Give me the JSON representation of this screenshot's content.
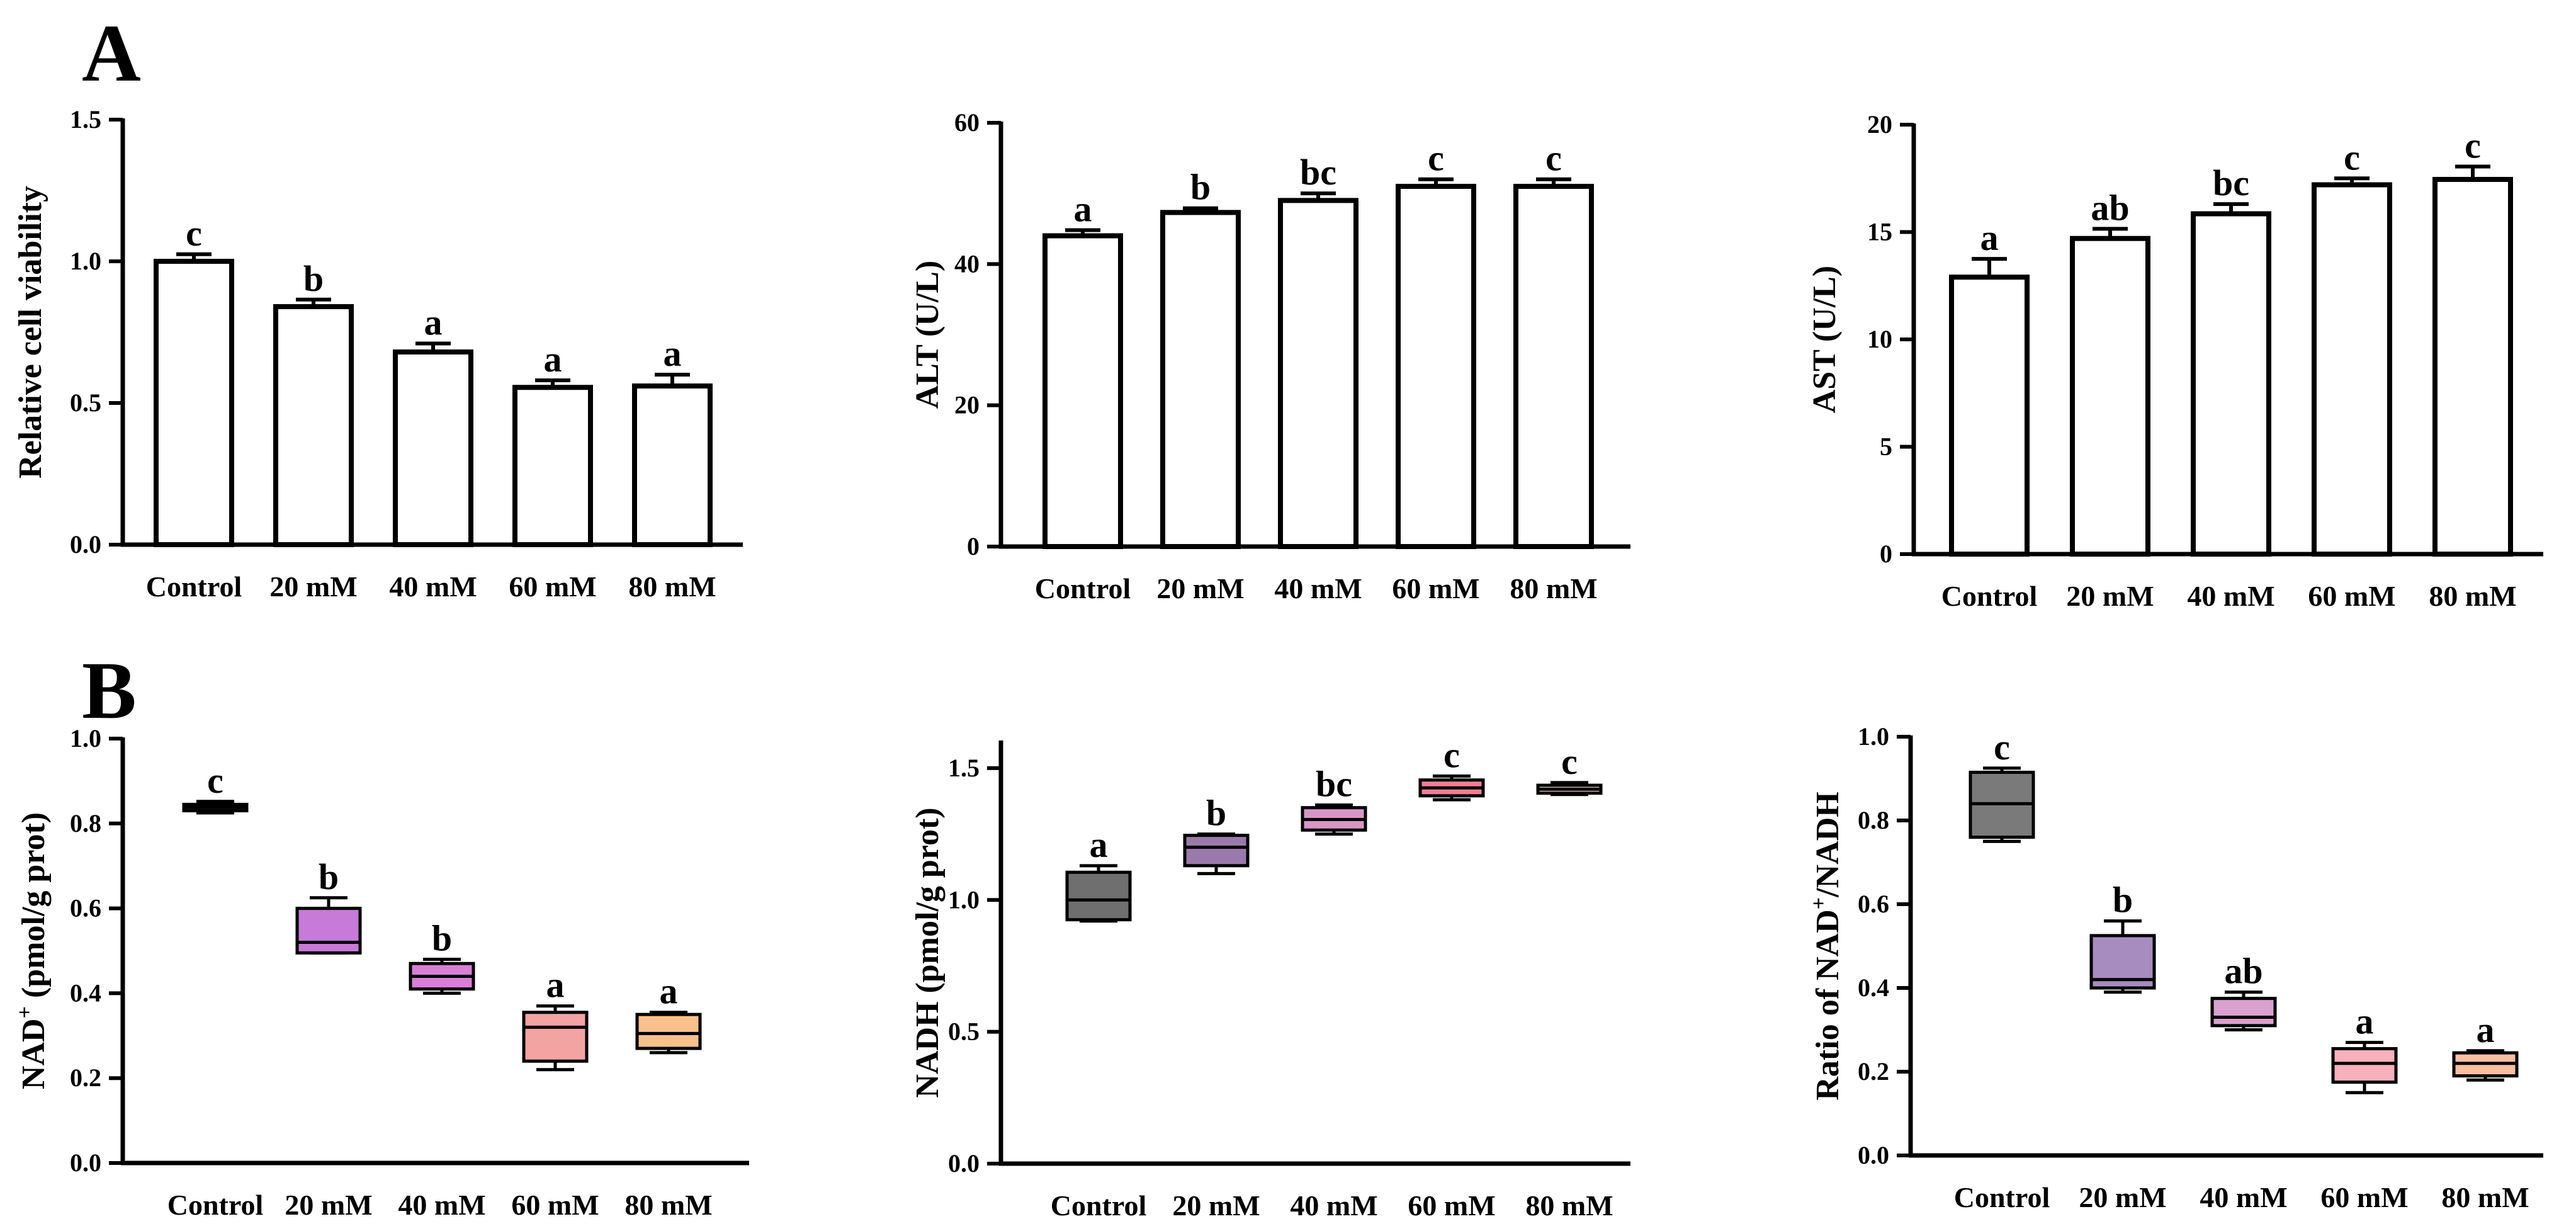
{
  "panel_labels": [
    "A",
    "B"
  ],
  "chart_data": [
    {
      "type": "bar",
      "panel": "A",
      "categories": [
        "Control",
        "20 mM",
        "40 mM",
        "60 mM",
        "80 mM"
      ],
      "values": [
        1.0,
        0.84,
        0.68,
        0.555,
        0.56
      ],
      "errors": [
        0.025,
        0.025,
        0.03,
        0.025,
        0.04
      ],
      "sig_letters": [
        "c",
        "b",
        "a",
        "a",
        "a"
      ],
      "ylabel": "Relative cell  viability",
      "ylim": [
        0,
        1.5
      ],
      "yticks": [
        0.0,
        0.5,
        1.0,
        1.5
      ],
      "ytick_labels": [
        "0.0",
        "0.5",
        "1.0",
        "1.5"
      ]
    },
    {
      "type": "bar",
      "panel": "A",
      "categories": [
        "Control",
        "20 mM",
        "40 mM",
        "60 mM",
        "80 mM"
      ],
      "values": [
        44,
        47.3,
        49,
        51,
        51
      ],
      "errors": [
        0.8,
        0.6,
        1.0,
        1.0,
        1.0
      ],
      "sig_letters": [
        "a",
        "b",
        "bc",
        "c",
        "c"
      ],
      "ylabel": "ALT (U/L)",
      "ylim": [
        0,
        60
      ],
      "yticks": [
        0,
        20,
        40,
        60
      ],
      "ytick_labels": [
        "0",
        "20",
        "40",
        "60"
      ]
    },
    {
      "type": "bar",
      "panel": "A",
      "categories": [
        "Control",
        "20 mM",
        "40 mM",
        "60 mM",
        "80 mM"
      ],
      "values": [
        12.9,
        14.7,
        15.85,
        17.2,
        17.45
      ],
      "errors": [
        0.85,
        0.45,
        0.45,
        0.3,
        0.6
      ],
      "sig_letters": [
        "a",
        "ab",
        "bc",
        "c",
        "c"
      ],
      "ylabel": "AST (U/L)",
      "ylim": [
        0,
        20
      ],
      "yticks": [
        0,
        5,
        10,
        15,
        20
      ],
      "ytick_labels": [
        "0",
        "5",
        "10",
        "15",
        "20"
      ]
    },
    {
      "type": "box",
      "panel": "B",
      "categories": [
        "Control",
        "20 mM",
        "40 mM",
        "60 mM",
        "80 mM"
      ],
      "boxes": [
        {
          "min": 0.825,
          "q1": 0.83,
          "median": 0.838,
          "q3": 0.845,
          "max": 0.852
        },
        {
          "min": 0.495,
          "q1": 0.495,
          "median": 0.52,
          "q3": 0.6,
          "max": 0.625
        },
        {
          "min": 0.4,
          "q1": 0.41,
          "median": 0.44,
          "q3": 0.47,
          "max": 0.48
        },
        {
          "min": 0.22,
          "q1": 0.24,
          "median": 0.32,
          "q3": 0.355,
          "max": 0.37
        },
        {
          "min": 0.26,
          "q1": 0.27,
          "median": 0.305,
          "q3": 0.35,
          "max": 0.355
        }
      ],
      "fills": [
        "#3a3a3a",
        "#c77ad8",
        "#d87fd8",
        "#f4a3a3",
        "#f8c08a"
      ],
      "sig_letters": [
        "c",
        "b",
        "b",
        "a",
        "a"
      ],
      "ylabel_main": "NAD",
      "ylabel_sup": "+",
      "ylabel_rest": " (pmol/g prot)",
      "ylim": [
        0,
        1.0
      ],
      "yticks": [
        0.0,
        0.2,
        0.4,
        0.6,
        0.8,
        1.0
      ],
      "ytick_labels": [
        "0.0",
        "0.2",
        "0.4",
        "0.6",
        "0.8",
        "1.0"
      ]
    },
    {
      "type": "box",
      "panel": "B",
      "categories": [
        "Control",
        "20 mM",
        "40 mM",
        "60 mM",
        "80 mM"
      ],
      "boxes": [
        {
          "min": 0.92,
          "q1": 0.925,
          "median": 1.0,
          "q3": 1.105,
          "max": 1.13
        },
        {
          "min": 1.1,
          "q1": 1.13,
          "median": 1.2,
          "q3": 1.245,
          "max": 1.25
        },
        {
          "min": 1.25,
          "q1": 1.265,
          "median": 1.305,
          "q3": 1.35,
          "max": 1.36
        },
        {
          "min": 1.38,
          "q1": 1.395,
          "median": 1.425,
          "q3": 1.455,
          "max": 1.47
        },
        {
          "min": 1.4,
          "q1": 1.405,
          "median": 1.42,
          "q3": 1.435,
          "max": 1.445
        }
      ],
      "fills": [
        "#6f6f6f",
        "#9a7aaa",
        "#d896c8",
        "#f07f93",
        "#e8c8c8"
      ],
      "sig_letters": [
        "a",
        "b",
        "bc",
        "c",
        "c"
      ],
      "ylabel_main": "NADH (pmol/g prot)",
      "ylabel_sup": "",
      "ylabel_rest": "",
      "ylim": [
        0,
        1.6
      ],
      "yticks": [
        0.0,
        0.5,
        1.0,
        1.5
      ],
      "ytick_labels": [
        "0.0",
        "0.5",
        "1.0",
        "1.5"
      ]
    },
    {
      "type": "box",
      "panel": "B",
      "categories": [
        "Control",
        "20 mM",
        "40 mM",
        "60 mM",
        "80 mM"
      ],
      "boxes": [
        {
          "min": 0.75,
          "q1": 0.76,
          "median": 0.84,
          "q3": 0.915,
          "max": 0.925
        },
        {
          "min": 0.39,
          "q1": 0.4,
          "median": 0.42,
          "q3": 0.525,
          "max": 0.56
        },
        {
          "min": 0.3,
          "q1": 0.31,
          "median": 0.33,
          "q3": 0.375,
          "max": 0.39
        },
        {
          "min": 0.15,
          "q1": 0.175,
          "median": 0.22,
          "q3": 0.255,
          "max": 0.27
        },
        {
          "min": 0.18,
          "q1": 0.19,
          "median": 0.22,
          "q3": 0.245,
          "max": 0.25
        }
      ],
      "fills": [
        "#7a7a7a",
        "#a78cc0",
        "#d9a0d0",
        "#f7b0bc",
        "#f8c0a0"
      ],
      "sig_letters": [
        "c",
        "b",
        "ab",
        "a",
        "a"
      ],
      "ylabel_main": "Ratio of NAD",
      "ylabel_sup": "+",
      "ylabel_rest": "/NADH",
      "ylim": [
        0,
        1.0
      ],
      "yticks": [
        0.0,
        0.2,
        0.4,
        0.6,
        0.8,
        1.0
      ],
      "ytick_labels": [
        "0.0",
        "0.2",
        "0.4",
        "0.6",
        "0.8",
        "1.0"
      ]
    }
  ]
}
